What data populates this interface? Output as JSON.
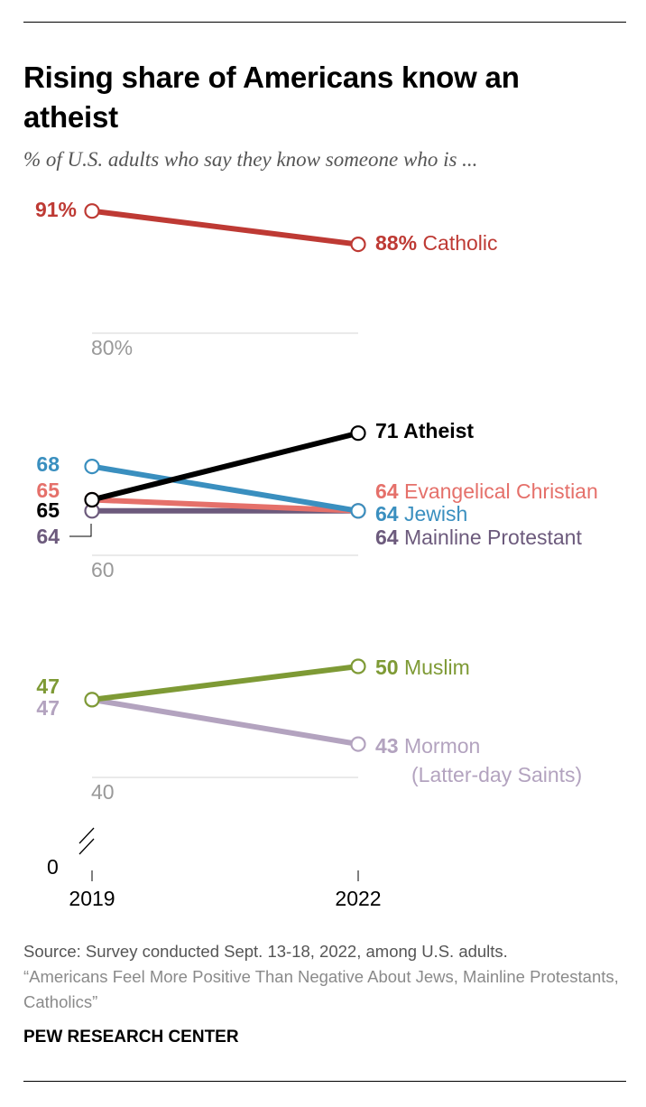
{
  "title": "Rising share of Americans know an atheist",
  "subtitle": "% of U.S. adults who say they know someone who is ...",
  "source": "Source: Survey conducted Sept. 13-18, 2022, among U.S. adults.",
  "report": "“Americans Feel More Positive Than Negative About Jews, Mainline Protestants, Catholics”",
  "credit": "PEW RESEARCH CENTER",
  "chart_data": {
    "type": "line",
    "x": [
      "2019",
      "2022"
    ],
    "y_ticks": [
      "80%",
      "60",
      "40",
      "0"
    ],
    "broken_axis": true,
    "grid": true,
    "series": [
      {
        "name": "Catholic",
        "color": "#be3a34",
        "values": [
          91,
          88
        ],
        "start_label": "91%",
        "end_label": "88%"
      },
      {
        "name": "Atheist",
        "color": "#000000",
        "values": [
          65,
          71
        ],
        "start_label": "65",
        "end_label": "71",
        "bold_name": true
      },
      {
        "name": "Evangelical Christian",
        "color": "#e5706a",
        "values": [
          65,
          64
        ],
        "start_label": "65",
        "end_label": "64"
      },
      {
        "name": "Jewish",
        "color": "#3a8fbf",
        "values": [
          68,
          64
        ],
        "start_label": "68",
        "end_label": "64"
      },
      {
        "name": "Mainline Protestant",
        "color": "#6c5a7c",
        "values": [
          64,
          64
        ],
        "start_label": "64",
        "end_label": "64"
      },
      {
        "name": "Muslim",
        "color": "#7e9a35",
        "values": [
          47,
          50
        ],
        "start_label": "47",
        "end_label": "50"
      },
      {
        "name": "Mormon\n(Latter-day Saints)",
        "color": "#b3a3bf",
        "values": [
          47,
          43
        ],
        "start_label": "47",
        "end_label": "43"
      }
    ]
  }
}
